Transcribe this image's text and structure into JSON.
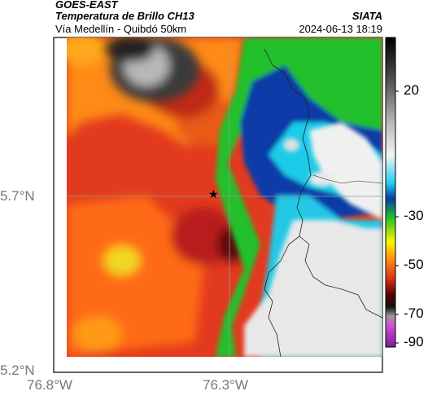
{
  "header": {
    "satellite": "GOES-EAST",
    "product": "Temperatura de Brillo CH13",
    "region": "Vía Medellín - Quibdó 50km",
    "org": "SIATA",
    "datetime": "2024-06-13 18:19"
  },
  "axes": {
    "lat_labels": [
      "5.7°N",
      "5.2°N"
    ],
    "lon_labels": [
      "76.8°W",
      "76.3°W"
    ]
  },
  "colorbar": {
    "labels": [
      "20",
      "-30",
      "-50",
      "-70",
      "-90"
    ]
  },
  "marker": {
    "symbol": "★",
    "name": "station-marker"
  },
  "colors": {
    "warm_red": "#d8301c",
    "orange": "#ff7a10",
    "cold_blue": "#0a3aa8",
    "cyan": "#19c9e6",
    "green": "#1fbf2a",
    "cloud_gray": "#e6e6e6"
  }
}
